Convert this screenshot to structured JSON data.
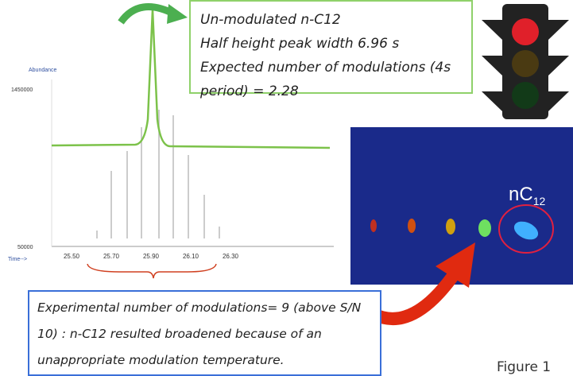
{
  "green_box": {
    "title": "Un-modulated n-C12",
    "text": "Half height peak width  6.96 s Expected number of modulations (4s period) = 2.28"
  },
  "chromatogram": {
    "y_label": "Abundance",
    "y_top": "1450000",
    "y_bottom": "50000",
    "x_label": "Time-->",
    "x_ticks": [
      "25.50",
      "25.70",
      "25.90",
      "26.10",
      "26.30"
    ]
  },
  "plot_2d": {
    "label": "nC",
    "label_sub": "12"
  },
  "blue_box": {
    "text": "Experimental number of modulations= 9 (above S/N 10) : n-C12 resulted broadened  because of an unappropriate modulation temperature."
  },
  "caption": "Figure 1"
}
